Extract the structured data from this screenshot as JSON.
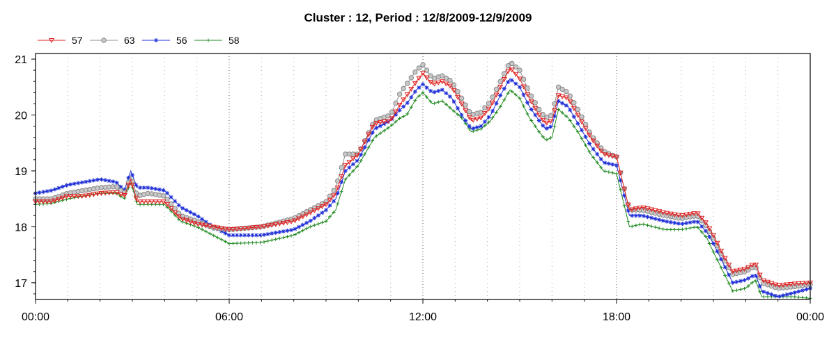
{
  "chart_data": {
    "type": "line",
    "title": "Cluster : 12, Period : 12/8/2009-12/9/2009",
    "xlabel": "",
    "ylabel": "",
    "x_ticks": [
      "00:00",
      "06:00",
      "12:00",
      "18:00",
      "00:00"
    ],
    "y_ticks": [
      "17",
      "18",
      "19",
      "20",
      "21"
    ],
    "ylim": [
      16.7,
      21.1
    ],
    "xlim_hours": [
      0,
      24
    ],
    "grid": {
      "vertical_major": true,
      "vertical_minor_dotted": true,
      "horizontal": false
    },
    "legend_position": "top-left",
    "series": [
      {
        "name": "57",
        "color": "#e02020",
        "marker": "triangle-down",
        "points": [
          [
            0,
            18.45
          ],
          [
            0.5,
            18.45
          ],
          [
            1,
            18.55
          ],
          [
            1.5,
            18.55
          ],
          [
            2,
            18.6
          ],
          [
            2.5,
            18.62
          ],
          [
            2.75,
            18.55
          ],
          [
            2.95,
            18.85
          ],
          [
            3.15,
            18.45
          ],
          [
            3.5,
            18.45
          ],
          [
            4,
            18.45
          ],
          [
            4.5,
            18.15
          ],
          [
            5,
            18.05
          ],
          [
            5.5,
            18
          ],
          [
            6,
            17.95
          ],
          [
            7,
            18
          ],
          [
            8,
            18.1
          ],
          [
            8.5,
            18.25
          ],
          [
            9,
            18.4
          ],
          [
            9.3,
            18.6
          ],
          [
            9.6,
            19.1
          ],
          [
            10,
            19.3
          ],
          [
            10.5,
            19.85
          ],
          [
            11,
            19.9
          ],
          [
            11.3,
            20.2
          ],
          [
            11.5,
            20.35
          ],
          [
            11.8,
            20.6
          ],
          [
            12,
            20.75
          ],
          [
            12.3,
            20.55
          ],
          [
            12.6,
            20.6
          ],
          [
            12.9,
            20.5
          ],
          [
            13.2,
            20.2
          ],
          [
            13.5,
            19.9
          ],
          [
            13.8,
            19.95
          ],
          [
            14.1,
            20.15
          ],
          [
            14.4,
            20.5
          ],
          [
            14.7,
            20.85
          ],
          [
            15,
            20.65
          ],
          [
            15.3,
            20.3
          ],
          [
            15.6,
            20.0
          ],
          [
            15.8,
            19.85
          ],
          [
            16,
            19.9
          ],
          [
            16.2,
            20.35
          ],
          [
            16.5,
            20.3
          ],
          [
            16.8,
            20.0
          ],
          [
            17.2,
            19.6
          ],
          [
            17.6,
            19.3
          ],
          [
            18,
            19.25
          ],
          [
            18.4,
            18.3
          ],
          [
            18.8,
            18.35
          ],
          [
            19.5,
            18.25
          ],
          [
            20,
            18.2
          ],
          [
            20.5,
            18.25
          ],
          [
            20.8,
            18.05
          ],
          [
            21,
            17.85
          ],
          [
            21.3,
            17.5
          ],
          [
            21.6,
            17.2
          ],
          [
            22,
            17.25
          ],
          [
            22.3,
            17.35
          ],
          [
            22.5,
            17.05
          ],
          [
            23,
            16.95
          ],
          [
            23.5,
            16.98
          ],
          [
            24,
            17.0
          ]
        ]
      },
      {
        "name": "63",
        "color": "#909090",
        "marker": "circle",
        "points": [
          [
            0,
            18.5
          ],
          [
            0.5,
            18.5
          ],
          [
            1,
            18.6
          ],
          [
            1.5,
            18.65
          ],
          [
            2,
            18.7
          ],
          [
            2.5,
            18.72
          ],
          [
            2.75,
            18.6
          ],
          [
            2.95,
            18.9
          ],
          [
            3.15,
            18.55
          ],
          [
            3.5,
            18.6
          ],
          [
            4,
            18.55
          ],
          [
            4.5,
            18.2
          ],
          [
            5,
            18.1
          ],
          [
            5.5,
            17.98
          ],
          [
            6,
            17.95
          ],
          [
            7,
            18.0
          ],
          [
            8,
            18.15
          ],
          [
            8.5,
            18.3
          ],
          [
            9,
            18.45
          ],
          [
            9.3,
            18.7
          ],
          [
            9.6,
            19.3
          ],
          [
            10,
            19.3
          ],
          [
            10.5,
            19.9
          ],
          [
            11,
            20.0
          ],
          [
            11.3,
            20.4
          ],
          [
            11.5,
            20.55
          ],
          [
            11.8,
            20.8
          ],
          [
            12,
            20.9
          ],
          [
            12.3,
            20.65
          ],
          [
            12.6,
            20.7
          ],
          [
            12.9,
            20.6
          ],
          [
            13.2,
            20.3
          ],
          [
            13.5,
            20.0
          ],
          [
            13.8,
            20.05
          ],
          [
            14.1,
            20.25
          ],
          [
            14.4,
            20.6
          ],
          [
            14.7,
            20.95
          ],
          [
            15,
            20.8
          ],
          [
            15.3,
            20.4
          ],
          [
            15.6,
            20.1
          ],
          [
            15.8,
            19.95
          ],
          [
            16,
            20.0
          ],
          [
            16.2,
            20.5
          ],
          [
            16.5,
            20.4
          ],
          [
            16.8,
            20.1
          ],
          [
            17.2,
            19.65
          ],
          [
            17.6,
            19.35
          ],
          [
            18,
            19.25
          ],
          [
            18.4,
            18.3
          ],
          [
            18.8,
            18.3
          ],
          [
            19.5,
            18.2
          ],
          [
            20,
            18.15
          ],
          [
            20.5,
            18.2
          ],
          [
            20.8,
            18.0
          ],
          [
            21,
            17.8
          ],
          [
            21.3,
            17.45
          ],
          [
            21.6,
            17.15
          ],
          [
            22,
            17.2
          ],
          [
            22.3,
            17.3
          ],
          [
            22.5,
            17.0
          ],
          [
            23,
            16.9
          ],
          [
            23.5,
            16.93
          ],
          [
            24,
            16.97
          ]
        ]
      },
      {
        "name": "56",
        "color": "#1f2fd8",
        "marker": "star",
        "points": [
          [
            0,
            18.6
          ],
          [
            0.5,
            18.65
          ],
          [
            1,
            18.75
          ],
          [
            1.5,
            18.8
          ],
          [
            2,
            18.85
          ],
          [
            2.5,
            18.8
          ],
          [
            2.75,
            18.65
          ],
          [
            2.95,
            19.0
          ],
          [
            3.15,
            18.7
          ],
          [
            3.5,
            18.7
          ],
          [
            4,
            18.65
          ],
          [
            4.5,
            18.35
          ],
          [
            5,
            18.2
          ],
          [
            5.5,
            18.0
          ],
          [
            6,
            17.85
          ],
          [
            7,
            17.85
          ],
          [
            8,
            17.95
          ],
          [
            8.5,
            18.1
          ],
          [
            9,
            18.3
          ],
          [
            9.3,
            18.5
          ],
          [
            9.6,
            19.0
          ],
          [
            10,
            19.2
          ],
          [
            10.5,
            19.75
          ],
          [
            11,
            19.9
          ],
          [
            11.3,
            20.1
          ],
          [
            11.5,
            20.2
          ],
          [
            11.8,
            20.45
          ],
          [
            12,
            20.55
          ],
          [
            12.3,
            20.4
          ],
          [
            12.6,
            20.45
          ],
          [
            12.9,
            20.3
          ],
          [
            13.2,
            20.0
          ],
          [
            13.5,
            19.75
          ],
          [
            13.8,
            19.8
          ],
          [
            14.1,
            20.0
          ],
          [
            14.4,
            20.35
          ],
          [
            14.7,
            20.65
          ],
          [
            15,
            20.5
          ],
          [
            15.3,
            20.15
          ],
          [
            15.6,
            19.9
          ],
          [
            15.8,
            19.75
          ],
          [
            16,
            19.8
          ],
          [
            16.2,
            20.25
          ],
          [
            16.5,
            20.15
          ],
          [
            16.8,
            19.85
          ],
          [
            17.2,
            19.45
          ],
          [
            17.6,
            19.15
          ],
          [
            18,
            19.1
          ],
          [
            18.4,
            18.2
          ],
          [
            18.8,
            18.2
          ],
          [
            19.5,
            18.1
          ],
          [
            20,
            18.05
          ],
          [
            20.5,
            18.1
          ],
          [
            20.8,
            17.9
          ],
          [
            21,
            17.7
          ],
          [
            21.3,
            17.35
          ],
          [
            21.6,
            17.0
          ],
          [
            22,
            17.05
          ],
          [
            22.3,
            17.15
          ],
          [
            22.5,
            16.85
          ],
          [
            23,
            16.75
          ],
          [
            23.5,
            16.82
          ],
          [
            24,
            16.9
          ]
        ]
      },
      {
        "name": "58",
        "color": "#208a20",
        "marker": "plus",
        "points": [
          [
            0,
            18.4
          ],
          [
            0.5,
            18.42
          ],
          [
            1,
            18.5
          ],
          [
            1.5,
            18.55
          ],
          [
            2,
            18.6
          ],
          [
            2.5,
            18.6
          ],
          [
            2.75,
            18.5
          ],
          [
            2.95,
            18.8
          ],
          [
            3.15,
            18.4
          ],
          [
            3.5,
            18.4
          ],
          [
            4,
            18.4
          ],
          [
            4.5,
            18.1
          ],
          [
            5,
            18.0
          ],
          [
            5.5,
            17.85
          ],
          [
            6,
            17.7
          ],
          [
            7,
            17.72
          ],
          [
            8,
            17.85
          ],
          [
            8.5,
            18.0
          ],
          [
            9,
            18.1
          ],
          [
            9.3,
            18.3
          ],
          [
            9.6,
            18.85
          ],
          [
            10,
            19.1
          ],
          [
            10.5,
            19.6
          ],
          [
            11,
            19.8
          ],
          [
            11.3,
            19.95
          ],
          [
            11.5,
            20.0
          ],
          [
            11.8,
            20.3
          ],
          [
            12,
            20.4
          ],
          [
            12.3,
            20.2
          ],
          [
            12.6,
            20.25
          ],
          [
            12.9,
            20.1
          ],
          [
            13.2,
            19.95
          ],
          [
            13.5,
            19.7
          ],
          [
            13.8,
            19.75
          ],
          [
            14.1,
            19.9
          ],
          [
            14.4,
            20.15
          ],
          [
            14.7,
            20.45
          ],
          [
            15,
            20.3
          ],
          [
            15.3,
            19.95
          ],
          [
            15.6,
            19.7
          ],
          [
            15.8,
            19.55
          ],
          [
            16,
            19.6
          ],
          [
            16.2,
            20.1
          ],
          [
            16.5,
            19.95
          ],
          [
            16.8,
            19.7
          ],
          [
            17.2,
            19.3
          ],
          [
            17.6,
            19.0
          ],
          [
            18,
            18.95
          ],
          [
            18.4,
            18.0
          ],
          [
            18.8,
            18.05
          ],
          [
            19.5,
            17.95
          ],
          [
            20,
            17.95
          ],
          [
            20.5,
            18.0
          ],
          [
            20.8,
            17.8
          ],
          [
            21,
            17.55
          ],
          [
            21.3,
            17.2
          ],
          [
            21.6,
            16.85
          ],
          [
            22,
            16.9
          ],
          [
            22.3,
            17.05
          ],
          [
            22.5,
            16.75
          ],
          [
            23,
            16.75
          ],
          [
            23.5,
            16.75
          ],
          [
            24,
            16.72
          ]
        ]
      }
    ]
  }
}
